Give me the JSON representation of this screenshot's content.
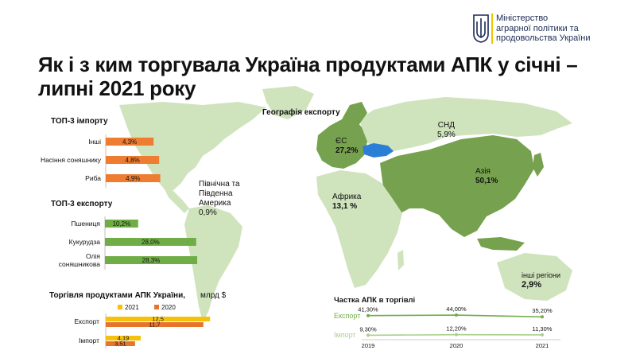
{
  "header": {
    "ministry_line1": "Міністерство",
    "ministry_line2": "аграрної політики та",
    "ministry_line3": "продовольства України",
    "emblem_icon": "trident-icon",
    "title_line1": "Як і з ким торгувала Україна продуктами АПК у січні –",
    "title_line2": "липні 2021 року"
  },
  "colors": {
    "import_bar": "#ee7d31",
    "export_bar": "#70ad47",
    "bar_2021": "#f5c20b",
    "bar_2020": "#e8732a",
    "map_light": "#cfe3bd",
    "map_dark": "#76a14e",
    "ukraine": "#2b7fd4"
  },
  "chart_data": [
    {
      "type": "bar",
      "title": "ТОП-3 імпорту",
      "categories": [
        "Інші",
        "Насіння соняшнику",
        "Риба"
      ],
      "values": [
        4.3,
        4.8,
        4.9
      ],
      "value_labels": [
        "4,3%",
        "4,8%",
        "4,9%"
      ]
    },
    {
      "type": "bar",
      "title": "ТОП-3 експорту",
      "categories": [
        "Пшениця",
        "Кукурудза",
        "Олія соняшникова"
      ],
      "values": [
        10.2,
        28.0,
        28.3
      ],
      "value_labels": [
        "10,2%",
        "28,0%",
        "28,3%"
      ]
    },
    {
      "type": "bar",
      "title": "Торгівля продуктами АПК  України,",
      "title_unit": "млрд $",
      "categories": [
        "Експорт",
        "Імпорт"
      ],
      "series": [
        {
          "name": "2021",
          "values": [
            12.5,
            4.19
          ],
          "value_labels": [
            "12,5",
            "4,19"
          ]
        },
        {
          "name": "2020",
          "values": [
            11.7,
            3.51
          ],
          "value_labels": [
            "11,7",
            "3,51"
          ]
        }
      ]
    },
    {
      "type": "line",
      "title": "Частка АПК в торгівлі",
      "x": [
        "2019",
        "2020",
        "2021"
      ],
      "series": [
        {
          "name": "Експорт",
          "values": [
            41.3,
            44.0,
            35.2
          ],
          "value_labels": [
            "41,30%",
            "44,00%",
            "35,20%"
          ]
        },
        {
          "name": "Імпорт",
          "values": [
            9.3,
            12.2,
            11.3
          ],
          "value_labels": [
            "9,30%",
            "12,20%",
            "11,30%"
          ]
        }
      ]
    }
  ],
  "geography": {
    "title": "Географія експорту",
    "regions": [
      {
        "name": "ЄС",
        "value": "27,2%"
      },
      {
        "name": "СНД",
        "value": "5,9%"
      },
      {
        "name": "Азія",
        "value": "50,1%"
      },
      {
        "name": "Африка",
        "value": "13,1 %"
      },
      {
        "name": "Північна та Південна Америка",
        "value": "0,9%"
      },
      {
        "name": "інші регіони",
        "value": "2,9%"
      }
    ]
  }
}
